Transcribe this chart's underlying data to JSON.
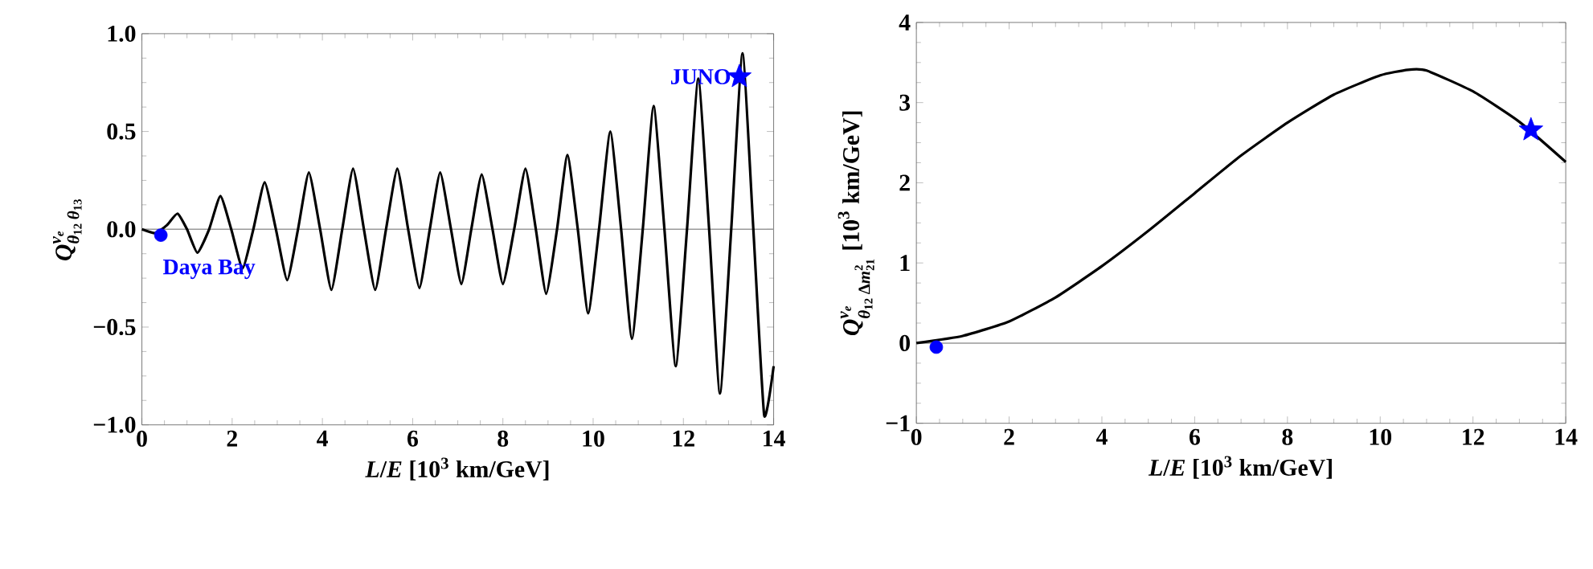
{
  "chart_data": [
    {
      "type": "line",
      "xlabel": "*L*/*E* [10$^{3}$ km/GeV]",
      "ylabel": "\\text{\\textit{Q}}^{\\text{\\textit{ν}}_{\\text{\\textit{e}}}}_{\\text{\\textit{θ}}_{\\text{12}}\\,\\text{\\textit{θ}}_{\\text{13}}}",
      "xlim": [
        0,
        14
      ],
      "ylim": [
        -1,
        1
      ],
      "xticks": [
        0,
        2,
        4,
        6,
        8,
        10,
        12,
        14
      ],
      "yticks": [
        {
          "value": -1,
          "label": "−1.0"
        },
        {
          "value": -0.5,
          "label": "−0.5"
        },
        {
          "value": 0,
          "label": "0.0"
        },
        {
          "value": 0.5,
          "label": "0.5"
        },
        {
          "value": 1,
          "label": "1.0"
        }
      ],
      "ref_lines": [
        {
          "axis": "y",
          "value": 0,
          "color": "#999999"
        }
      ],
      "series": [
        {
          "color": "#000000",
          "x": [
            0,
            0.3,
            0.55,
            0.79,
            1.0,
            1.23,
            1.49,
            1.74,
            1.98,
            2.23,
            2.47,
            2.72,
            2.97,
            3.22,
            3.46,
            3.7,
            3.95,
            4.2,
            4.44,
            4.68,
            4.92,
            5.17,
            5.41,
            5.66,
            5.9,
            6.15,
            6.38,
            6.61,
            6.85,
            7.08,
            7.3,
            7.53,
            7.77,
            8.0,
            8.25,
            8.5,
            8.73,
            8.96,
            9.2,
            9.43,
            9.66,
            9.89,
            10.13,
            10.38,
            10.62,
            10.86,
            11.1,
            11.34,
            11.58,
            11.83,
            12.08,
            12.33,
            12.57,
            12.81,
            13.06,
            13.31,
            13.55,
            13.79,
            14
          ],
          "values": [
            0,
            -0.02,
            0.02,
            0.08,
            0,
            -0.12,
            0,
            0.17,
            0,
            -0.2,
            0,
            0.24,
            0,
            -0.26,
            0,
            0.29,
            0,
            -0.31,
            0,
            0.31,
            0,
            -0.31,
            0,
            0.31,
            0,
            -0.3,
            0,
            0.29,
            0,
            -0.28,
            0,
            0.28,
            0,
            -0.28,
            0,
            0.31,
            0,
            -0.33,
            0,
            0.38,
            0,
            -0.43,
            0,
            0.5,
            0,
            -0.56,
            0,
            0.63,
            0,
            -0.7,
            0,
            0.77,
            0,
            -0.84,
            0,
            0.9,
            0,
            -0.95,
            -0.7
          ]
        },
        {
          "type": "scatter",
          "name": "Daya Bay",
          "color": "#0000ff",
          "marker": "circle",
          "x": [
            0.42
          ],
          "values": [
            -0.03
          ]
        },
        {
          "type": "scatter",
          "name": "JUNO",
          "color": "#0000ff",
          "marker": "star",
          "x": [
            13.24
          ],
          "values": [
            0.78
          ]
        }
      ]
    },
    {
      "type": "line",
      "xlabel": "*L*/*E* [10$^{3}$ km/GeV]",
      "ylabel": "\\text{\\textit{Q}}^{\\text{\\textit{ν}}_{\\text{\\textit{e}}}}_{\\text{\\textit{θ}}_{\\text{12}}\\,\\text{Δ\\textit{m}}^{\\text{2}}_{\\text{21}}}\\ \\text{[10}^{\\text{3}}\\text{ km/GeV]}",
      "xlim": [
        0,
        14
      ],
      "ylim": [
        -1,
        4
      ],
      "xticks": [
        0,
        2,
        4,
        6,
        8,
        10,
        12,
        14
      ],
      "yticks": [
        {
          "value": -1,
          "label": "−1"
        },
        0,
        1,
        2,
        3,
        4
      ],
      "ref_lines": [
        {
          "axis": "y",
          "value": 0,
          "color": "#999999"
        }
      ],
      "series": [
        {
          "color": "#000000",
          "x": [
            0,
            1,
            2,
            3,
            4,
            5,
            6,
            7,
            8,
            9,
            10,
            10.6,
            11,
            12,
            13,
            14
          ],
          "values": [
            0,
            0.09,
            0.27,
            0.57,
            0.96,
            1.4,
            1.87,
            2.34,
            2.75,
            3.1,
            3.34,
            3.41,
            3.4,
            3.14,
            2.76,
            2.26
          ]
        },
        {
          "type": "scatter",
          "color": "#0000ff",
          "marker": "circle",
          "x": [
            0.43
          ],
          "values": [
            -0.05
          ]
        },
        {
          "type": "scatter",
          "color": "#0000ff",
          "marker": "star",
          "x": [
            13.25
          ],
          "values": [
            2.66
          ]
        }
      ]
    }
  ]
}
